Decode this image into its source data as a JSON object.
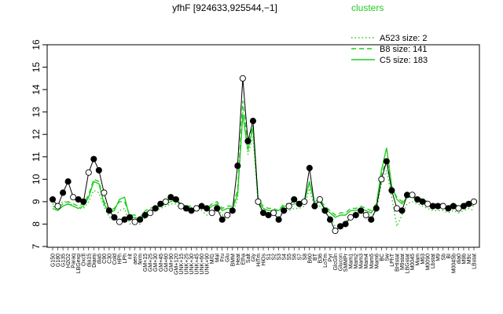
{
  "chart_data": {
    "type": "line",
    "title": "yfhF [924633,925544,−1]",
    "ylim": [
      7,
      16
    ],
    "yticks": [
      7,
      8,
      9,
      10,
      11,
      12,
      13,
      14,
      15,
      16
    ],
    "grid": false,
    "legend": {
      "title": "clusters",
      "placement": "top-right",
      "color": "#22cc22",
      "entries": [
        {
          "label": "A523 size: 2",
          "style": "dotted"
        },
        {
          "label": "B8 size: 141",
          "style": "dashed"
        },
        {
          "label": "C5 size: 183",
          "style": "solid"
        }
      ]
    },
    "x_tick_labels": [
      "G150",
      "G180",
      "G135",
      "H2O2",
      "Paraq",
      "LBGexp",
      "Oxctl",
      "dia15",
      "Diami",
      "dia5",
      "C90",
      "C30",
      "Cold",
      "HPh",
      "LPh",
      "nit",
      "aero",
      "ferm",
      "GM+15",
      "GM+25",
      "GM+30",
      "GM+45",
      "GM+60",
      "GM+90",
      "GM+120",
      "UNK+15",
      "UNK+25",
      "UNK+30",
      "UNK+45",
      "UNK+60",
      "UNK+90",
      "M/G",
      "Mal",
      "Fru",
      "Glu",
      "BMM",
      "Heat",
      "Etha",
      "Salt",
      "Gly",
      "HiTm",
      "HiOs",
      "S1",
      "S2",
      "S3",
      "S4",
      "S5",
      "S6",
      "S7",
      "S8",
      "B60",
      "BT",
      "B36",
      "LoTm",
      "Pyr",
      "GlcGln",
      "Glucon",
      "SMMPr",
      "Mam1",
      "Mam2",
      "Mam3",
      "Mam4",
      "Mam5",
      "Mam6",
      "BC",
      "Sw",
      "LPhT",
      "BHIstat",
      "M9stat",
      "LBGstat",
      "M0045",
      "Mam",
      "M63",
      "M0090",
      "Lbstat",
      "M9",
      "Sb",
      "BI",
      "M0045b",
      "dia0",
      "M9b",
      "M9c",
      "LBstat"
    ],
    "series": [
      {
        "role": "cluster-average",
        "color": "#22cc22",
        "style": "solid",
        "values": [
          8.7,
          8.6,
          8.8,
          8.9,
          8.8,
          8.7,
          8.8,
          9.2,
          9.9,
          9.8,
          8.9,
          8.5,
          8.6,
          9.1,
          9.2,
          8.3,
          8.3,
          8.2,
          8.5,
          8.6,
          8.7,
          8.8,
          8.9,
          9.0,
          9.1,
          8.9,
          8.8,
          8.7,
          8.7,
          8.8,
          8.6,
          8.8,
          8.9,
          8.6,
          8.7,
          8.7,
          9.3,
          12.9,
          11.3,
          12.3,
          9.0,
          8.7,
          8.6,
          8.6,
          8.6,
          8.8,
          8.8,
          8.9,
          8.9,
          9.0,
          9.9,
          8.9,
          9.0,
          8.7,
          8.5,
          8.3,
          8.4,
          8.4,
          8.6,
          8.6,
          8.7,
          8.6,
          8.5,
          8.8,
          10.4,
          11.4,
          9.7,
          9.1,
          8.9,
          9.2,
          9.2,
          9.1,
          9.0,
          8.9,
          8.8,
          8.8,
          8.8,
          8.7,
          8.8,
          8.7,
          8.8,
          8.9,
          8.8
        ]
      },
      {
        "role": "cluster-average",
        "color": "#22cc22",
        "style": "dashed",
        "values": [
          8.8,
          8.7,
          8.9,
          9.0,
          8.9,
          8.8,
          8.9,
          9.3,
          10.0,
          9.9,
          9.0,
          8.6,
          8.7,
          9.0,
          9.0,
          8.4,
          8.4,
          8.3,
          8.6,
          8.7,
          8.8,
          8.9,
          9.0,
          9.1,
          9.0,
          8.9,
          8.8,
          8.8,
          8.8,
          8.8,
          8.7,
          8.9,
          9.0,
          8.7,
          8.8,
          8.8,
          9.5,
          13.5,
          11.6,
          12.4,
          9.1,
          8.8,
          8.7,
          8.7,
          8.6,
          8.9,
          8.9,
          9.0,
          9.0,
          9.1,
          9.8,
          9.0,
          9.1,
          8.8,
          8.6,
          8.4,
          8.5,
          8.5,
          8.7,
          8.7,
          8.8,
          8.7,
          8.6,
          8.9,
          10.2,
          10.9,
          9.6,
          9.2,
          9.0,
          9.3,
          9.3,
          9.2,
          9.1,
          9.0,
          8.9,
          8.9,
          8.9,
          8.8,
          8.9,
          8.8,
          8.9,
          9.0,
          8.9
        ]
      },
      {
        "role": "cluster-average",
        "color": "#22cc22",
        "style": "dotted",
        "values": [
          8.9,
          8.8,
          9.0,
          9.0,
          8.8,
          8.7,
          8.7,
          9.0,
          9.5,
          9.4,
          8.8,
          8.3,
          8.3,
          8.6,
          8.7,
          8.0,
          8.1,
          8.0,
          8.3,
          8.4,
          8.6,
          8.7,
          8.8,
          8.9,
          8.9,
          8.7,
          8.6,
          8.6,
          8.6,
          8.6,
          8.4,
          8.6,
          8.7,
          8.4,
          8.5,
          8.5,
          9.1,
          13.0,
          11.1,
          11.9,
          8.9,
          8.5,
          8.4,
          8.4,
          8.3,
          8.6,
          8.6,
          8.7,
          8.7,
          8.8,
          9.6,
          8.7,
          8.8,
          8.5,
          8.3,
          7.9,
          8.0,
          8.1,
          8.3,
          8.3,
          8.5,
          8.4,
          8.3,
          8.6,
          9.8,
          10.4,
          9.2,
          7.9,
          8.4,
          8.9,
          9.0,
          8.9,
          8.8,
          8.7,
          8.6,
          8.6,
          8.6,
          8.5,
          8.6,
          8.5,
          8.6,
          8.7,
          8.6
        ]
      },
      {
        "role": "gene",
        "color": "#000000",
        "style": "solid",
        "values": [
          9.1,
          8.8,
          9.4,
          9.9,
          9.2,
          9.1,
          9.0,
          10.3,
          10.9,
          10.4,
          9.4,
          8.6,
          8.3,
          8.1,
          8.2,
          8.3,
          8.1,
          8.2,
          8.4,
          8.5,
          8.7,
          8.9,
          9.0,
          9.2,
          9.1,
          8.8,
          8.7,
          8.6,
          8.7,
          8.8,
          8.7,
          8.5,
          8.7,
          8.2,
          8.4,
          8.6,
          10.6,
          14.5,
          11.7,
          12.6,
          9.0,
          8.5,
          8.4,
          8.5,
          8.2,
          8.6,
          8.8,
          9.1,
          8.9,
          9.0,
          10.5,
          8.8,
          9.1,
          8.6,
          8.2,
          7.7,
          7.9,
          8.0,
          8.3,
          8.4,
          8.6,
          8.4,
          8.2,
          8.7,
          10.0,
          10.8,
          9.5,
          8.7,
          8.6,
          9.3,
          9.3,
          9.1,
          9.0,
          8.9,
          8.8,
          8.8,
          8.8,
          8.7,
          8.8,
          8.7,
          8.8,
          8.9,
          9.0
        ]
      }
    ]
  }
}
